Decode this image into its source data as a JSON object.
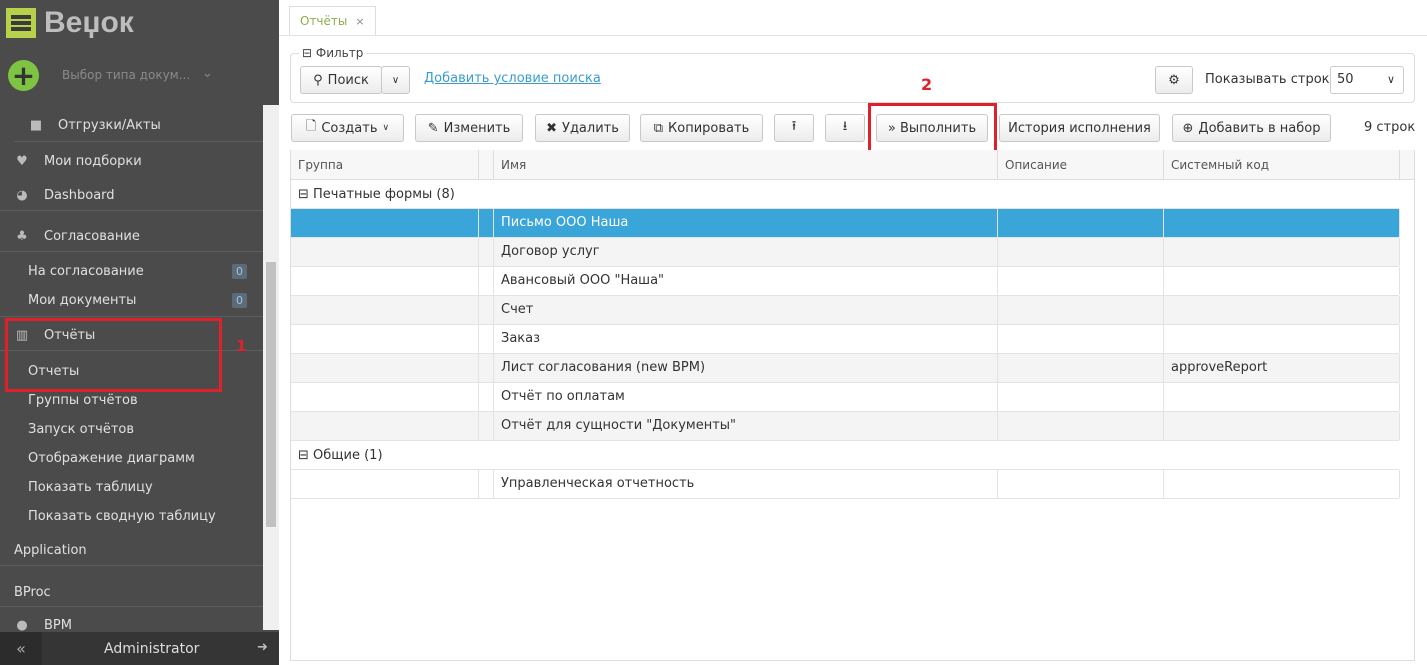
{
  "app": {
    "logo_text": "Веџок",
    "doc_type_placeholder": "Выбор типа докум...",
    "user": "Administrator"
  },
  "sidebar": {
    "items": [
      {
        "label": "Отгрузки/Акты",
        "icon": "folder-icon"
      },
      {
        "label": "Мои подборки",
        "icon": "heart-icon"
      },
      {
        "label": "Dashboard",
        "icon": "dashboard-icon"
      },
      {
        "label": "Согласование",
        "icon": "sitemap-icon"
      },
      {
        "label": "На согласование",
        "badge": "0"
      },
      {
        "label": "Мои документы",
        "badge": "0"
      },
      {
        "label": "Отчёты",
        "icon": "bar-chart-icon"
      },
      {
        "label": "Отчеты"
      },
      {
        "label": "Группы отчётов"
      },
      {
        "label": "Запуск отчётов"
      },
      {
        "label": "Отображение диаграмм"
      },
      {
        "label": "Показать таблицу"
      },
      {
        "label": "Показать сводную таблицу"
      },
      {
        "label": "Application"
      },
      {
        "label": "BProc"
      },
      {
        "label": "BPM"
      }
    ]
  },
  "annotations": {
    "one": "1",
    "two": "2",
    "color": "#e0212b"
  },
  "tab": {
    "label": "Отчёты",
    "close": "×"
  },
  "filter": {
    "legend": "⊟ Фильтр",
    "search": "Поиск",
    "add_condition": "Добавить условие поиска",
    "rows_label": "Показывать строк",
    "rows_value": "50"
  },
  "toolbar": {
    "create": "Создать",
    "edit": "Изменить",
    "delete": "Удалить",
    "copy": "Копировать",
    "run": "» Выполнить",
    "history": "История исполнения",
    "add_to_set": "Добавить в набор",
    "count": "9 строк"
  },
  "table": {
    "headers": [
      "Группа",
      "Имя",
      "Описание",
      "Системный код"
    ],
    "groups": [
      {
        "label": "⊟ Печатные формы (8)",
        "rows": [
          {
            "name": "Письмо ООО Наша",
            "code": ""
          },
          {
            "name": "Договор услуг",
            "code": ""
          },
          {
            "name": "Авансовый ООО \"Наша\"",
            "code": ""
          },
          {
            "name": "Счет",
            "code": ""
          },
          {
            "name": "Заказ",
            "code": ""
          },
          {
            "name": "Лист согласования (new BPM)",
            "code": "approveReport"
          },
          {
            "name": "Отчёт по оплатам",
            "code": ""
          },
          {
            "name": "Отчёт для сущности \"Документы\"",
            "code": ""
          }
        ]
      },
      {
        "label": "⊟ Общие (1)",
        "rows": [
          {
            "name": "Управленческая отчетность",
            "code": ""
          }
        ]
      }
    ]
  },
  "colors": {
    "selected_row": "#3aa5d8",
    "sidebar": "#4b4b4b",
    "accent_green": "#7fc342"
  }
}
